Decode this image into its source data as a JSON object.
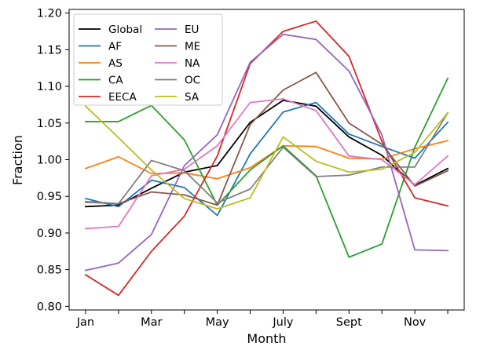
{
  "chart_data": {
    "type": "line",
    "title": "",
    "xlabel": "Month",
    "ylabel": "Fraction",
    "x": [
      1,
      2,
      3,
      4,
      5,
      6,
      7,
      8,
      9,
      10,
      11,
      12
    ],
    "xlim": [
      0.5,
      12.5
    ],
    "xticks": [
      {
        "value": 1,
        "label": "Jan"
      },
      {
        "value": 2,
        "label": ""
      },
      {
        "value": 3,
        "label": "Mar"
      },
      {
        "value": 4,
        "label": ""
      },
      {
        "value": 5,
        "label": "May"
      },
      {
        "value": 6,
        "label": ""
      },
      {
        "value": 7,
        "label": "July"
      },
      {
        "value": 8,
        "label": ""
      },
      {
        "value": 9,
        "label": "Sept"
      },
      {
        "value": 10,
        "label": ""
      },
      {
        "value": 11,
        "label": "Nov"
      },
      {
        "value": 12,
        "label": ""
      }
    ],
    "ylim": [
      0.795,
      1.205
    ],
    "yticks": [
      {
        "value": 0.8,
        "label": "0.80"
      },
      {
        "value": 0.85,
        "label": "0.85"
      },
      {
        "value": 0.9,
        "label": "0.90"
      },
      {
        "value": 0.95,
        "label": "0.95"
      },
      {
        "value": 1.0,
        "label": "1.00"
      },
      {
        "value": 1.05,
        "label": "1.05"
      },
      {
        "value": 1.1,
        "label": "1.10"
      },
      {
        "value": 1.15,
        "label": "1.15"
      },
      {
        "value": 1.2,
        "label": "1.20"
      }
    ],
    "legend_position": "top-left",
    "legend_columns": 2,
    "series": [
      {
        "name": "Global",
        "color": "#000000",
        "values": [
          0.936,
          0.938,
          0.961,
          0.983,
          0.992,
          1.051,
          1.081,
          1.073,
          1.031,
          1.006,
          0.965,
          0.988
        ]
      },
      {
        "name": "AF",
        "color": "#1f77b4",
        "values": [
          0.947,
          0.936,
          0.972,
          0.962,
          0.924,
          1.008,
          1.065,
          1.078,
          1.035,
          1.018,
          1.002,
          1.051
        ]
      },
      {
        "name": "AS",
        "color": "#ff7f0e",
        "values": [
          0.988,
          1.004,
          0.981,
          0.982,
          0.974,
          0.989,
          1.019,
          1.018,
          1.002,
          1.001,
          1.015,
          1.026
        ]
      },
      {
        "name": "CA",
        "color": "#2ca02c",
        "values": [
          1.052,
          1.052,
          1.074,
          1.027,
          0.938,
          0.986,
          1.019,
          0.978,
          0.867,
          0.885,
          1.017,
          1.111
        ]
      },
      {
        "name": "EECA",
        "color": "#d62728",
        "values": [
          0.843,
          0.815,
          0.875,
          0.923,
          1.005,
          1.131,
          1.175,
          1.189,
          1.141,
          1.025,
          0.948,
          0.937
        ]
      },
      {
        "name": "EU",
        "color": "#9467bd",
        "values": [
          0.849,
          0.859,
          0.898,
          0.992,
          1.034,
          1.133,
          1.171,
          1.164,
          1.121,
          1.034,
          0.877,
          0.876
        ]
      },
      {
        "name": "ME",
        "color": "#8c564b",
        "values": [
          0.942,
          0.94,
          0.956,
          0.952,
          0.938,
          1.048,
          1.095,
          1.119,
          1.05,
          1.021,
          0.964,
          0.985
        ]
      },
      {
        "name": "NA",
        "color": "#e377c2",
        "values": [
          0.906,
          0.909,
          0.978,
          0.987,
          1.019,
          1.078,
          1.083,
          1.067,
          1.005,
          1.0,
          0.966,
          1.005
        ]
      },
      {
        "name": "OC",
        "color": "#7f7f7f",
        "values": [
          0.943,
          0.94,
          0.999,
          0.985,
          0.941,
          0.96,
          1.017,
          0.977,
          0.979,
          0.99,
          0.99,
          1.064
        ]
      },
      {
        "name": "SA",
        "color": "#bcbd22",
        "values": [
          1.073,
          1.03,
          0.986,
          0.947,
          0.933,
          0.948,
          1.031,
          0.998,
          0.983,
          0.987,
          1.01,
          1.064
        ]
      }
    ]
  }
}
